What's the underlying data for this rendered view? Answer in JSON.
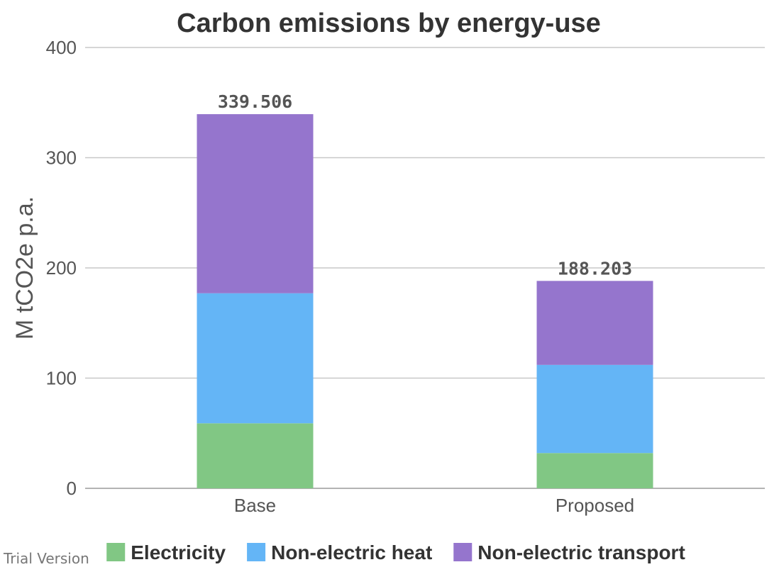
{
  "chart_data": {
    "type": "bar",
    "stacked": true,
    "title": "Carbon emissions by energy-use",
    "xlabel": "",
    "ylabel": "M tCO2e p.a.",
    "ylim": [
      0,
      400
    ],
    "yticks": [
      "0",
      "100",
      "200",
      "300",
      "400"
    ],
    "grid": true,
    "legend_position": "bottom",
    "categories": [
      "Base",
      "Proposed"
    ],
    "totals": [
      "339.506",
      "188.203"
    ],
    "series": [
      {
        "name": "Electricity",
        "color": "#81c784",
        "values": [
          59,
          32
        ]
      },
      {
        "name": "Non-electric heat",
        "color": "#64b5f6",
        "values": [
          118,
          80
        ]
      },
      {
        "name": "Non-electric transport",
        "color": "#9575cd",
        "values": [
          162.506,
          76.203
        ]
      }
    ]
  },
  "watermark": "Trial Version"
}
